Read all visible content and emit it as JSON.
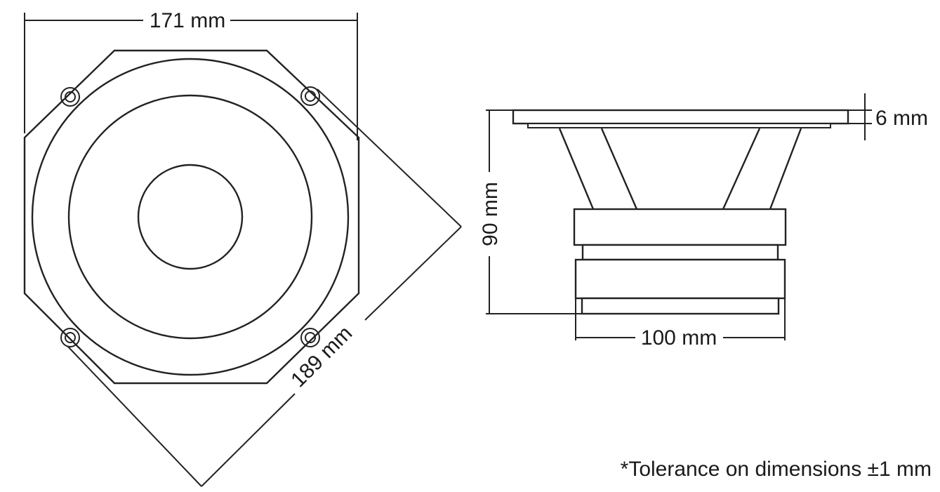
{
  "dimensions": {
    "width_label": "171 mm",
    "diagonal_label": "189 mm",
    "flange_label": "6 mm",
    "depth_label": "90 mm",
    "magnet_label": "100 mm"
  },
  "note": "*Tolerance on dimensions ±1 mm"
}
